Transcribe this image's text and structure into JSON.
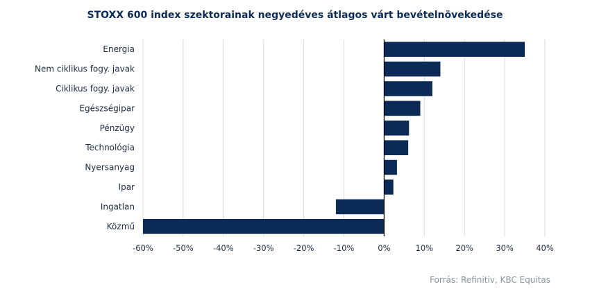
{
  "chart_data": {
    "type": "bar",
    "orientation": "horizontal",
    "title": "STOXX 600 index szektorainak negyedéves átlagos várt bevételnövekedése",
    "categories": [
      "Energia",
      "Nem ciklikus fogy. javak",
      "Ciklikus fogy. javak",
      "Egészségipar",
      "Pénzügy",
      "Technológia",
      "Nyersanyag",
      "Ipar",
      "Ingatlan",
      "Közmű"
    ],
    "values": [
      35,
      14,
      12,
      9,
      6.2,
      6,
      3.2,
      2.3,
      -12,
      -60
    ],
    "xlim": [
      -60,
      40
    ],
    "xticks": [
      -60,
      -50,
      -40,
      -30,
      -20,
      -10,
      0,
      10,
      20,
      30,
      40
    ],
    "xtick_format": "percent",
    "grid": true,
    "bar_color": "#0b2a55"
  },
  "source": "Forrás: Refinitiv, KBC Equitas"
}
